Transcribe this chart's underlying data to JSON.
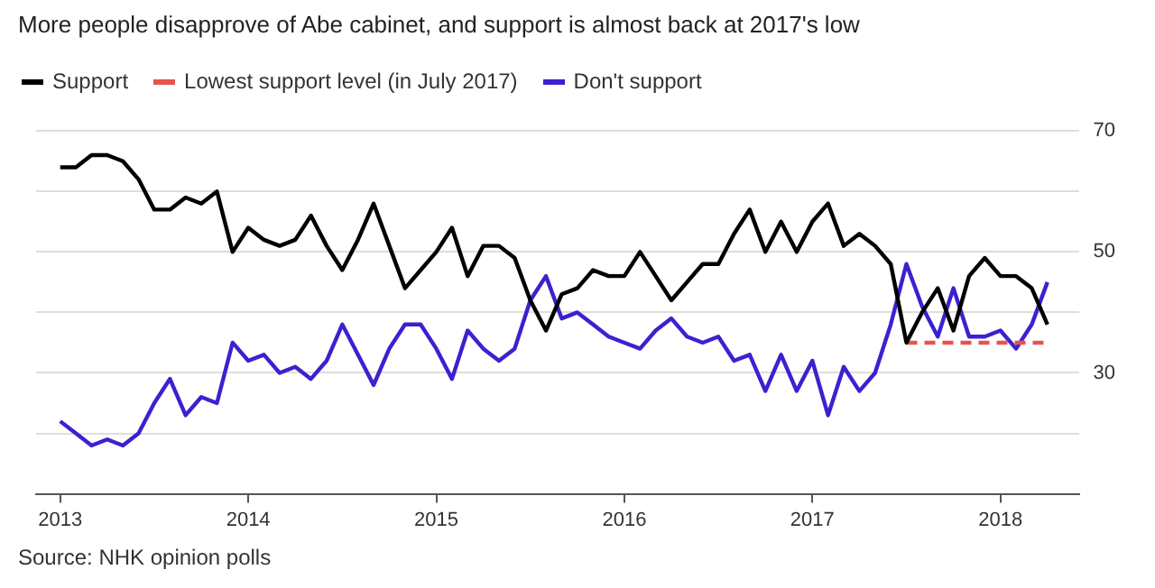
{
  "chart_data": {
    "type": "line",
    "title": "More people disapprove of Abe cabinet, and support is almost back at 2017's low",
    "x": [
      "2013-01",
      "2013-02",
      "2013-03",
      "2013-04",
      "2013-05",
      "2013-06",
      "2013-07",
      "2013-08",
      "2013-09",
      "2013-10",
      "2013-11",
      "2013-12",
      "2014-01",
      "2014-02",
      "2014-03",
      "2014-04",
      "2014-05",
      "2014-06",
      "2014-07",
      "2014-08",
      "2014-09",
      "2014-10",
      "2014-11",
      "2014-12",
      "2015-01",
      "2015-02",
      "2015-03",
      "2015-04",
      "2015-05",
      "2015-06",
      "2015-07",
      "2015-08",
      "2015-09",
      "2015-10",
      "2015-11",
      "2015-12",
      "2016-01",
      "2016-02",
      "2016-03",
      "2016-04",
      "2016-05",
      "2016-06",
      "2016-07",
      "2016-08",
      "2016-09",
      "2016-10",
      "2016-11",
      "2016-12",
      "2017-01",
      "2017-02",
      "2017-03",
      "2017-04",
      "2017-05",
      "2017-06",
      "2017-07",
      "2017-08",
      "2017-09",
      "2017-10",
      "2017-11",
      "2017-12",
      "2018-01",
      "2018-02",
      "2018-03",
      "2018-04"
    ],
    "series": [
      {
        "name": "Support",
        "color": "#000000",
        "values": [
          64,
          64,
          66,
          66,
          65,
          62,
          57,
          57,
          59,
          58,
          60,
          50,
          54,
          52,
          51,
          52,
          56,
          51,
          47,
          52,
          58,
          51,
          44,
          47,
          50,
          54,
          46,
          51,
          51,
          49,
          42,
          37,
          43,
          44,
          47,
          46,
          46,
          50,
          46,
          42,
          45,
          48,
          48,
          53,
          57,
          50,
          55,
          50,
          55,
          58,
          51,
          53,
          51,
          48,
          35,
          40,
          44,
          37,
          46,
          49,
          46,
          46,
          44,
          38
        ]
      },
      {
        "name": "Lowest support level (in July 2017)",
        "color": "#e8534f",
        "line_style": "dashed",
        "x": [
          "2017-07",
          "2018-04"
        ],
        "values": [
          35,
          35
        ]
      },
      {
        "name": "Don't support",
        "color": "#3a22d0",
        "values": [
          22,
          20,
          18,
          19,
          18,
          20,
          25,
          29,
          23,
          26,
          25,
          35,
          32,
          33,
          30,
          31,
          29,
          32,
          38,
          33,
          28,
          34,
          38,
          38,
          34,
          29,
          37,
          34,
          32,
          34,
          42,
          46,
          39,
          40,
          38,
          36,
          35,
          34,
          37,
          39,
          36,
          35,
          36,
          32,
          33,
          27,
          33,
          27,
          32,
          23,
          31,
          27,
          30,
          38,
          48,
          41,
          36,
          44,
          36,
          36,
          37,
          34,
          38,
          45
        ]
      }
    ],
    "xlim": [
      "2012-11-15",
      "2018-06"
    ],
    "xticks": [
      "2013",
      "2014",
      "2015",
      "2016",
      "2017",
      "2018"
    ],
    "ylim": [
      10,
      70
    ],
    "yticks": [
      {
        "value": 20,
        "label": null
      },
      30,
      {
        "value": 40,
        "label": null
      },
      50,
      {
        "value": 60,
        "label": null
      },
      70
    ],
    "grid": "y",
    "legend": "top left",
    "marker": "none",
    "annotations": [
      "Source: NHK opinion polls"
    ]
  }
}
